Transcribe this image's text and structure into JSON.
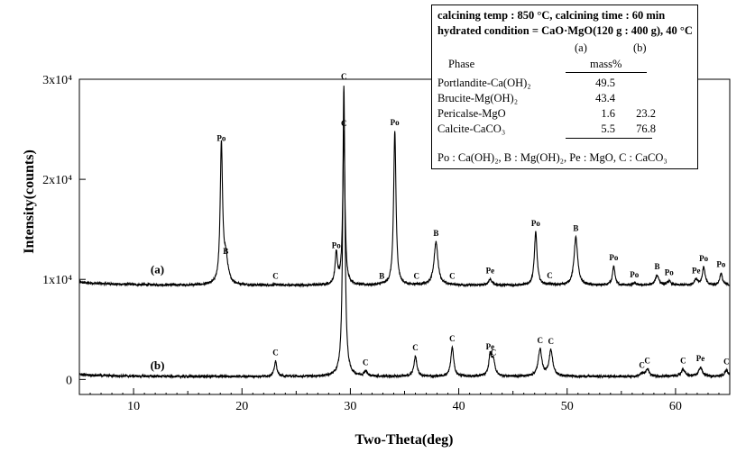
{
  "chart_data": {
    "type": "line",
    "xlabel": "Two-Theta(deg)",
    "ylabel": "Intensity(counts)",
    "xlim": [
      5,
      65
    ],
    "ylim": [
      -1500,
      30000
    ],
    "x_ticks": [
      10,
      20,
      30,
      40,
      50,
      60
    ],
    "y_ticks": [
      {
        "value": 0,
        "label": "0"
      },
      {
        "value": 10000,
        "label": "1x10⁴"
      },
      {
        "value": 20000,
        "label": "2x10⁴"
      },
      {
        "value": 30000,
        "label": "3x10⁴"
      }
    ],
    "grid": false,
    "series": [
      {
        "name": "(a)",
        "baseline": 9400,
        "label_pos": [
          12.2,
          10600
        ],
        "peaks": [
          {
            "x": 18.1,
            "h": 13800,
            "w": 0.13,
            "label": "Po"
          },
          {
            "x": 18.5,
            "h": 2500,
            "w": 0.25,
            "label": "B"
          },
          {
            "x": 23.1,
            "h": 60,
            "w": 0.2,
            "label": "C"
          },
          {
            "x": 28.7,
            "h": 3100,
            "w": 0.13,
            "label": "Po"
          },
          {
            "x": 29.4,
            "h": 15300,
            "w": 0.12,
            "label": "C"
          },
          {
            "x": 32.9,
            "h": 50,
            "w": 0.2,
            "label": "B"
          },
          {
            "x": 34.1,
            "h": 15400,
            "w": 0.13,
            "label": "Po"
          },
          {
            "x": 36.1,
            "h": 50,
            "w": 0.2,
            "label": "C"
          },
          {
            "x": 37.9,
            "h": 4300,
            "w": 0.22,
            "label": "B"
          },
          {
            "x": 39.4,
            "h": 50,
            "w": 0.2,
            "label": "C"
          },
          {
            "x": 42.9,
            "h": 600,
            "w": 0.2,
            "label": "Pe"
          },
          {
            "x": 47.1,
            "h": 5300,
            "w": 0.15,
            "label": "Po"
          },
          {
            "x": 48.4,
            "h": 80,
            "w": 0.2,
            "label": "C"
          },
          {
            "x": 50.8,
            "h": 4800,
            "w": 0.2,
            "label": "B"
          },
          {
            "x": 54.3,
            "h": 1900,
            "w": 0.14,
            "label": "Po"
          },
          {
            "x": 56.2,
            "h": 200,
            "w": 0.2,
            "label": "Po"
          },
          {
            "x": 58.3,
            "h": 1000,
            "w": 0.2,
            "label": "B"
          },
          {
            "x": 59.4,
            "h": 400,
            "w": 0.2,
            "label": "Po"
          },
          {
            "x": 61.9,
            "h": 600,
            "w": 0.2,
            "label": "Pe"
          },
          {
            "x": 62.6,
            "h": 1800,
            "w": 0.15,
            "label": "Po"
          },
          {
            "x": 64.2,
            "h": 1200,
            "w": 0.15,
            "label": "Po"
          }
        ]
      },
      {
        "name": "(b)",
        "baseline": 300,
        "label_pos": [
          12.2,
          1000
        ],
        "peaks": [
          {
            "x": 23.1,
            "h": 1500,
            "w": 0.14,
            "label": "C"
          },
          {
            "x": 29.4,
            "h": 29100,
            "w": 0.12,
            "label": "C"
          },
          {
            "x": 31.4,
            "h": 500,
            "w": 0.16,
            "label": "C"
          },
          {
            "x": 36.0,
            "h": 2000,
            "w": 0.16,
            "label": "C"
          },
          {
            "x": 39.4,
            "h": 2900,
            "w": 0.16,
            "label": "C"
          },
          {
            "x": 42.9,
            "h": 2100,
            "w": 0.15,
            "label": "Pe"
          },
          {
            "x": 43.2,
            "h": 1500,
            "w": 0.17,
            "label": "C"
          },
          {
            "x": 47.5,
            "h": 2700,
            "w": 0.2,
            "label": "C"
          },
          {
            "x": 48.5,
            "h": 2600,
            "w": 0.2,
            "label": "C"
          },
          {
            "x": 56.9,
            "h": 250,
            "w": 0.2,
            "label": "C"
          },
          {
            "x": 57.4,
            "h": 700,
            "w": 0.2,
            "label": "C"
          },
          {
            "x": 60.7,
            "h": 700,
            "w": 0.2,
            "label": "C"
          },
          {
            "x": 62.3,
            "h": 900,
            "w": 0.2,
            "label": "Pe"
          },
          {
            "x": 64.7,
            "h": 600,
            "w": 0.2,
            "label": "C"
          }
        ]
      }
    ]
  },
  "legend": {
    "line1": "calcining temp : 850 °C, calcining time : 60 min",
    "line2": "hydrated condition = CaO·MgO(120 g : 400 g), 40 °C",
    "col_a": "(a)",
    "col_b": "(b)",
    "phase_header": "Phase",
    "mass_header": "mass%",
    "rows": [
      {
        "phase": "Portlandite-Ca(OH)₂",
        "a": "49.5",
        "b": ""
      },
      {
        "phase": "Brucite-Mg(OH)₂",
        "a": "43.4",
        "b": ""
      },
      {
        "phase": "Pericalse-MgO",
        "a": "1.6",
        "b": "23.2"
      },
      {
        "phase": "Calcite-CaCO₃",
        "a": "5.5",
        "b": "76.8"
      }
    ],
    "footnote": "Po : Ca(OH)₂, B : Mg(OH)₂, Pe : MgO, C : CaCO₃"
  }
}
